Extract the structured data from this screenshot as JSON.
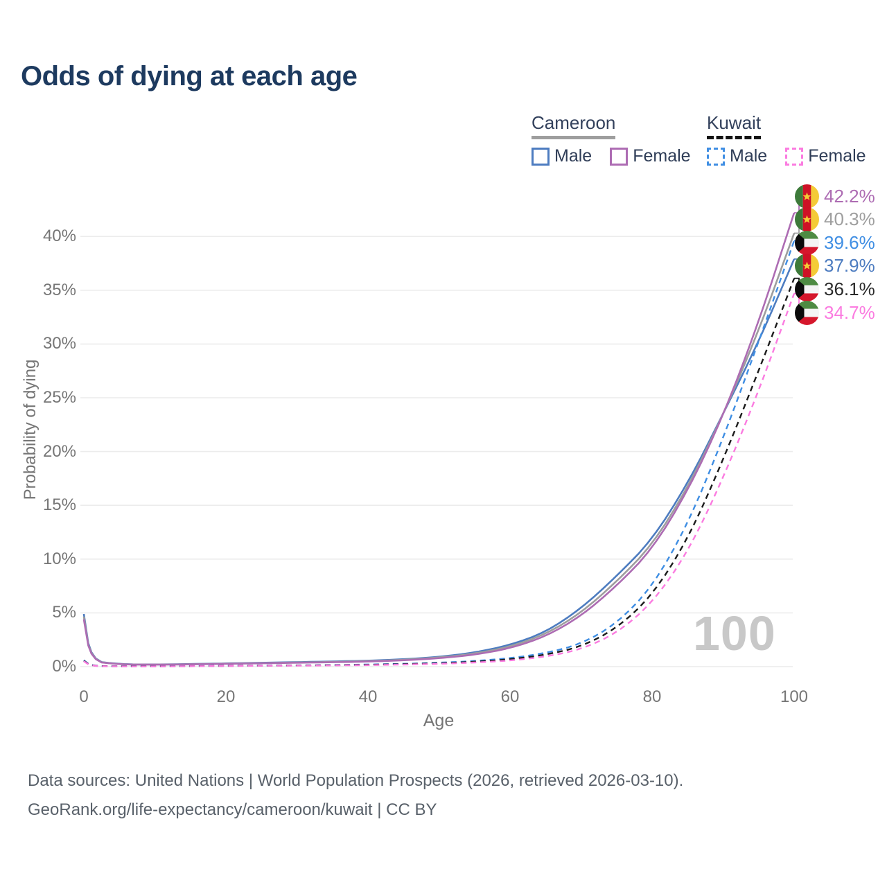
{
  "title": "Odds of dying at each age",
  "watermark": "100",
  "legend": {
    "groups": [
      {
        "label": "Cameroon",
        "line_style": "solid",
        "line_color": "#9e9e9e",
        "items": [
          {
            "label": "Male",
            "color": "#4d7cc0",
            "dashed": false
          },
          {
            "label": "Female",
            "color": "#ad6cb3",
            "dashed": false
          }
        ]
      },
      {
        "label": "Kuwait",
        "line_style": "dashed",
        "line_color": "#141414",
        "items": [
          {
            "label": "Male",
            "color": "#3f8ee3",
            "dashed": true
          },
          {
            "label": "Female",
            "color": "#fb7be0",
            "dashed": true
          }
        ]
      }
    ]
  },
  "axes": {
    "x": {
      "label": "Age",
      "ticks": [
        "0",
        "20",
        "40",
        "60",
        "80",
        "100"
      ],
      "range": [
        0,
        100
      ]
    },
    "y": {
      "label": "Probability of dying",
      "ticks": [
        "0%",
        "5%",
        "10%",
        "15%",
        "20%",
        "25%",
        "30%",
        "35%",
        "40%"
      ],
      "range_pct": [
        0,
        44
      ]
    }
  },
  "end_labels": [
    {
      "flag": "cameroon",
      "series": "cameroon_female",
      "value": "42.2%",
      "color": "#ad6cb3"
    },
    {
      "flag": "cameroon",
      "series": "cameroon_both",
      "value": "40.3%",
      "color": "#9e9e9e"
    },
    {
      "flag": "kuwait",
      "series": "kuwait_male",
      "value": "39.6%",
      "color": "#3f8ee3"
    },
    {
      "flag": "cameroon",
      "series": "cameroon_male",
      "value": "37.9%",
      "color": "#4d7cc0"
    },
    {
      "flag": "kuwait",
      "series": "kuwait_both",
      "value": "36.1%",
      "color": "#2a2a2a"
    },
    {
      "flag": "kuwait",
      "series": "kuwait_female",
      "value": "34.7%",
      "color": "#fb7be0"
    }
  ],
  "footer": {
    "line1": "Data sources: United Nations | World Population Prospects (2026, retrieved 2026-03-10).",
    "line2": "GeoRank.org/life-expectancy/cameroon/kuwait | CC BY"
  },
  "chart_data": {
    "type": "line",
    "title": "Odds of dying at each age",
    "xlabel": "Age",
    "ylabel": "Probability of dying",
    "x_ticks": [
      0,
      20,
      40,
      60,
      80,
      100
    ],
    "y_ticks_pct": [
      0,
      5,
      10,
      15,
      20,
      25,
      30,
      35,
      40
    ],
    "grid": "horizontal-only",
    "legend_position": "top-right",
    "x": [
      0,
      1,
      5,
      10,
      15,
      20,
      25,
      30,
      35,
      40,
      45,
      50,
      55,
      60,
      65,
      70,
      75,
      80,
      85,
      90,
      95,
      100
    ],
    "series": [
      {
        "id": "cameroon_male",
        "name": "Cameroon Male",
        "color": "#4d7cc0",
        "dashed": false,
        "end_value_pct": 37.9,
        "values_pct": [
          4.9,
          0.55,
          0.22,
          0.2,
          0.24,
          0.3,
          0.36,
          0.42,
          0.48,
          0.55,
          0.68,
          0.9,
          1.3,
          2.0,
          3.2,
          5.4,
          8.4,
          11.8,
          17.0,
          23.5,
          30.2,
          37.9
        ]
      },
      {
        "id": "cameroon_both",
        "name": "Cameroon",
        "color": "#9e9e9e",
        "dashed": false,
        "end_value_pct": 40.3,
        "values_pct": [
          4.65,
          0.52,
          0.21,
          0.19,
          0.22,
          0.28,
          0.33,
          0.39,
          0.44,
          0.51,
          0.63,
          0.84,
          1.2,
          1.85,
          3.0,
          5.0,
          7.9,
          11.3,
          16.6,
          23.4,
          31.2,
          40.3
        ]
      },
      {
        "id": "cameroon_female",
        "name": "Cameroon Female",
        "color": "#ad6cb3",
        "dashed": false,
        "end_value_pct": 42.2,
        "values_pct": [
          4.4,
          0.5,
          0.2,
          0.18,
          0.21,
          0.26,
          0.31,
          0.36,
          0.41,
          0.47,
          0.58,
          0.78,
          1.1,
          1.7,
          2.8,
          4.7,
          7.5,
          10.9,
          16.3,
          23.3,
          32.0,
          42.2
        ]
      },
      {
        "id": "kuwait_male",
        "name": "Kuwait Male",
        "color": "#3f8ee3",
        "dashed": true,
        "end_value_pct": 39.6,
        "values_pct": [
          0.6,
          0.06,
          0.03,
          0.03,
          0.05,
          0.08,
          0.1,
          0.12,
          0.15,
          0.2,
          0.26,
          0.36,
          0.52,
          0.78,
          1.25,
          2.1,
          4.0,
          7.4,
          13.2,
          21.2,
          30.2,
          39.6
        ]
      },
      {
        "id": "kuwait_both",
        "name": "Kuwait",
        "color": "#1c1c1c",
        "dashed": true,
        "end_value_pct": 36.1,
        "values_pct": [
          0.55,
          0.05,
          0.03,
          0.03,
          0.04,
          0.07,
          0.09,
          0.11,
          0.13,
          0.17,
          0.23,
          0.31,
          0.45,
          0.67,
          1.1,
          1.85,
          3.55,
          6.6,
          11.8,
          19.2,
          27.5,
          36.1
        ]
      },
      {
        "id": "kuwait_female",
        "name": "Kuwait Female",
        "color": "#fb7be0",
        "dashed": true,
        "end_value_pct": 34.7,
        "values_pct": [
          0.5,
          0.05,
          0.02,
          0.02,
          0.04,
          0.06,
          0.08,
          0.09,
          0.11,
          0.14,
          0.19,
          0.26,
          0.38,
          0.56,
          0.92,
          1.6,
          3.1,
          5.9,
          10.6,
          17.5,
          25.6,
          34.7
        ]
      }
    ]
  }
}
